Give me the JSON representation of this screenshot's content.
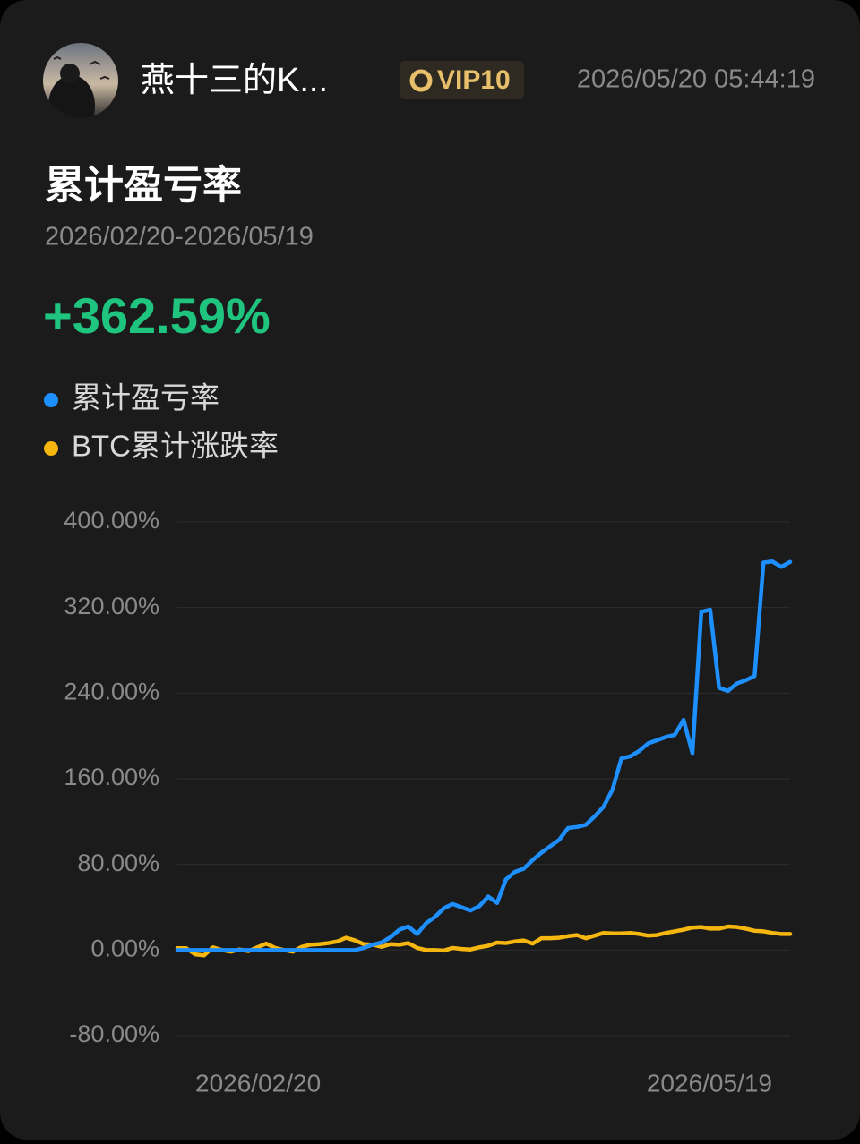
{
  "header": {
    "username": "燕十三的K...",
    "badge": "VIP10",
    "timestamp": "2026/05/20 05:44:19"
  },
  "chart_data": {
    "type": "line",
    "title": "累计盈亏率",
    "subtitle": "2026/02/20-2026/05/19",
    "summary_value": "+362.59%",
    "categories": [
      "2026/02/20",
      null,
      null,
      null,
      null,
      null,
      null,
      null,
      null,
      null,
      null,
      null,
      null,
      null,
      null,
      null,
      null,
      null,
      null,
      null,
      null,
      null,
      null,
      null,
      null,
      null,
      null,
      null,
      null,
      null,
      null,
      null,
      null,
      null,
      null,
      null,
      null,
      null,
      null,
      null,
      null,
      null,
      null,
      null,
      null,
      null,
      null,
      null,
      null,
      null,
      null,
      null,
      null,
      null,
      null,
      null,
      null,
      null,
      null,
      null,
      null,
      null,
      null,
      null,
      null,
      null,
      null,
      null,
      null,
      "2026/05/19"
    ],
    "series": [
      {
        "name": "累计盈亏率",
        "color": "#1e8fff",
        "values": [
          0,
          0,
          0,
          0,
          0,
          0,
          0,
          0,
          0,
          0,
          0,
          0,
          0,
          0,
          0,
          0,
          0,
          0,
          0,
          0,
          0,
          2,
          5,
          7,
          12,
          19,
          22,
          15,
          25,
          31,
          39,
          43,
          40,
          37,
          41,
          50,
          44,
          66,
          73,
          76,
          84,
          91,
          97,
          103,
          114,
          115,
          117,
          125,
          134,
          150,
          179,
          181,
          186,
          193,
          196,
          199,
          201,
          215,
          184,
          316,
          318,
          245,
          242,
          249,
          252,
          256,
          362,
          363,
          358,
          362.59
        ]
      },
      {
        "name": "BTC累计涨跌率",
        "color": "#f5b60f",
        "values": [
          1.7,
          1.7,
          -4,
          -5,
          2.5,
          0,
          -1.5,
          0.5,
          -1,
          2.5,
          6,
          2,
          0,
          -1.5,
          3,
          5,
          5.5,
          6.5,
          8,
          11.5,
          9,
          5.5,
          5,
          3,
          5.5,
          5,
          6.5,
          2,
          0,
          0,
          -0.5,
          2,
          1,
          0.5,
          2.5,
          4,
          7,
          6.5,
          8,
          9,
          6,
          11,
          11,
          11.5,
          13,
          14,
          11,
          13.5,
          16,
          15.5,
          15.5,
          16,
          15,
          13.5,
          14,
          16,
          17.5,
          19,
          21,
          21.5,
          20,
          20,
          22,
          21.5,
          20,
          18,
          17.5,
          16,
          15,
          15
        ]
      }
    ],
    "ylim": [
      -80,
      400
    ],
    "yticks": [
      {
        "value": 400,
        "label": "400.00%"
      },
      {
        "value": 320,
        "label": "320.00%"
      },
      {
        "value": 240,
        "label": "240.00%"
      },
      {
        "value": 160,
        "label": "160.00%"
      },
      {
        "value": 80,
        "label": "80.00%"
      },
      {
        "value": 0,
        "label": "0.00%"
      },
      {
        "value": -80,
        "label": "-80.00%"
      }
    ],
    "grid": true
  }
}
